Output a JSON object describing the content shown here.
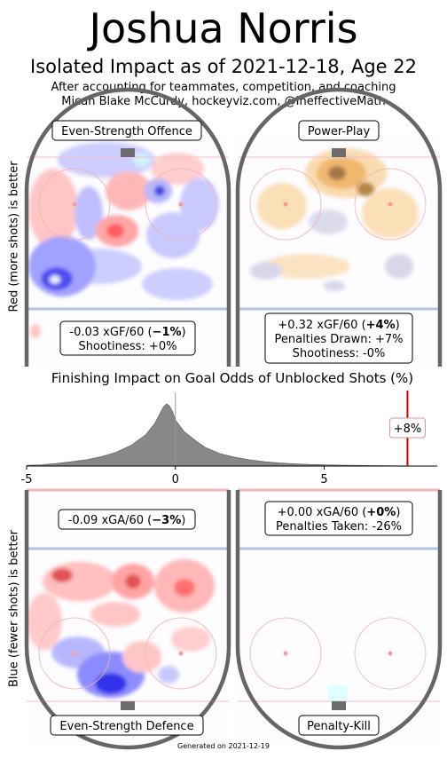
{
  "header": {
    "title": "Joshua Norris",
    "subtitle": "Isolated Impact as of 2021-12-18, Age 22",
    "note_line1": "After accounting for teammates, competition, and coaching",
    "note_line2": "Micah Blake McCurdy, hockeyviz.com, @IneffectiveMath"
  },
  "side_labels": {
    "top": "Red (more shots) is better",
    "bottom": "Blue (fewer shots) is better"
  },
  "panels": {
    "ev_offence": {
      "label": "Even-Strength Offence",
      "stat_pre": "-0.03 xGF/60 (",
      "stat_bold": "−1%",
      "stat_post": ")",
      "line2": "Shootiness: +0%"
    },
    "power_play": {
      "label": "Power-Play",
      "stat_pre": "+0.32 xGF/60 (",
      "stat_bold": "+4%",
      "stat_post": ")",
      "line2": "Penalties Drawn: +7%",
      "line3": "Shootiness: -0%"
    },
    "ev_defence": {
      "label": "Even-Strength Defence",
      "stat_pre": "-0.09 xGA/60 (",
      "stat_bold": "−3%",
      "stat_post": ")"
    },
    "penalty_kill": {
      "label": "Penalty-Kill",
      "stat_pre": "+0.00 xGA/60 (",
      "stat_bold": "+0%",
      "stat_post": ")",
      "line2": "Penalties Taken: -26%"
    }
  },
  "chart_data": {
    "type": "area",
    "title": "Finishing Impact on Goal Odds of Unblocked Shots (%)",
    "xlim": [
      -5,
      8.8
    ],
    "x_ticks": [
      -5,
      0,
      5
    ],
    "x_tick_labels": [
      "-5",
      "0",
      "5"
    ],
    "reference_line": 0,
    "marker": {
      "x": 7.8,
      "label": "+8%"
    },
    "density_curve": {
      "x": [
        -5,
        -4.5,
        -4,
        -3.5,
        -3,
        -2.5,
        -2,
        -1.5,
        -1,
        -0.7,
        -0.5,
        -0.4,
        -0.3,
        -0.2,
        -0.1,
        0,
        0.3,
        0.7,
        1,
        1.5,
        2,
        2.5,
        3,
        3.5,
        4,
        4.5,
        5,
        6,
        7,
        8,
        8.8
      ],
      "y": [
        0.01,
        0.02,
        0.04,
        0.07,
        0.1,
        0.15,
        0.22,
        0.33,
        0.5,
        0.68,
        0.86,
        0.95,
        1.0,
        0.97,
        0.88,
        0.74,
        0.55,
        0.4,
        0.3,
        0.2,
        0.14,
        0.1,
        0.07,
        0.05,
        0.035,
        0.025,
        0.018,
        0.01,
        0.005,
        0.002,
        0.0
      ]
    }
  },
  "colors": {
    "rink_border": "#666666",
    "blue_line": "#b4c4e0",
    "red_line": "#f2b8b8",
    "faceoff": "#f4a0a0",
    "positive": "#ff4a4a",
    "negative": "#2222ee",
    "pp_positive": "#f0a040",
    "pp_negative": "#8a8ac8",
    "marker": "#cc0000",
    "density": "#888888"
  },
  "footer": "Generated on 2021-12-19"
}
